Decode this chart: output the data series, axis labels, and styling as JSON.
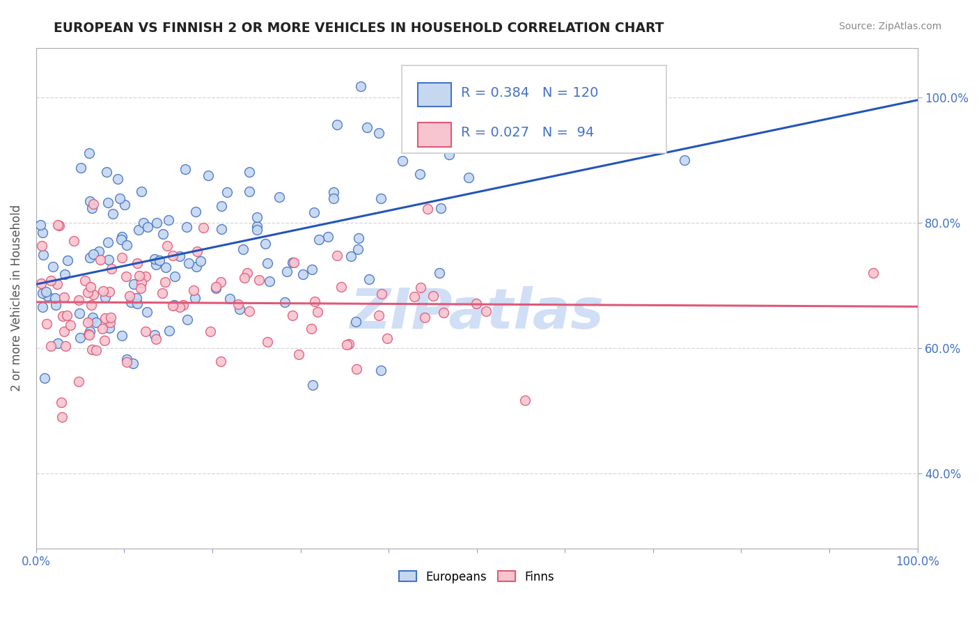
{
  "title": "EUROPEAN VS FINNISH 2 OR MORE VEHICLES IN HOUSEHOLD CORRELATION CHART",
  "source": "Source: ZipAtlas.com",
  "ylabel": "2 or more Vehicles in Household",
  "legend_europeans": "Europeans",
  "legend_finns": "Finns",
  "R_europeans": 0.384,
  "N_europeans": 120,
  "R_finns": 0.027,
  "N_finns": 94,
  "color_europeans_face": "#c5d8f0",
  "color_europeans_edge": "#4472c4",
  "color_finns_face": "#f7c5d0",
  "color_finns_edge": "#e05878",
  "color_line_europeans": "#2255bb",
  "color_line_finns": "#e05878",
  "color_legend_r": "#4472c4",
  "watermark_color": "#d0dff5",
  "background_color": "#ffffff",
  "grid_color": "#cccccc",
  "title_color": "#222222",
  "axis_label_color": "#4472c4",
  "tick_color_right": "#4472c4",
  "source_color": "#888888",
  "ylabel_color": "#555555",
  "xlim": [
    0.0,
    1.0
  ],
  "ylim": [
    0.28,
    1.08
  ],
  "yticks": [
    0.4,
    0.6,
    0.8,
    1.0
  ],
  "xticks_show": [
    0.0,
    1.0
  ],
  "dot_size": 100
}
